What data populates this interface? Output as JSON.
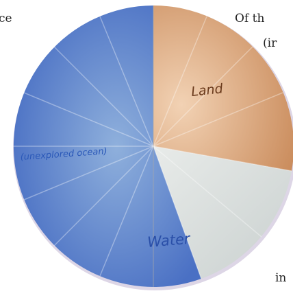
{
  "texts": {
    "left_fragment": "ce",
    "top_right_fragment": "Of th",
    "second_line_fragment": "(ir",
    "bottom_right_fragment": "in"
  },
  "labels": {
    "land": "Land",
    "unexplored": "(unexplored ocean)",
    "water": "Water"
  }
}
